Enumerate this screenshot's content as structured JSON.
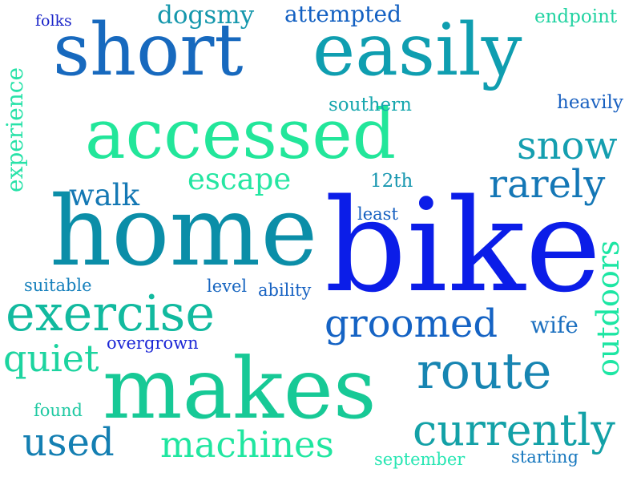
{
  "words": [
    {
      "text": "bike",
      "color": "#0b1de8"
    },
    {
      "text": "home",
      "color": "#0b8ea8"
    },
    {
      "text": "makes",
      "color": "#17c996"
    },
    {
      "text": "short",
      "color": "#1769be"
    },
    {
      "text": "easily",
      "color": "#0f9eb0"
    },
    {
      "text": "accessed",
      "color": "#22e69a"
    },
    {
      "text": "exercise",
      "color": "#12ba9f"
    },
    {
      "text": "route",
      "color": "#1785b2"
    },
    {
      "text": "currently",
      "color": "#13a1a7"
    },
    {
      "text": "groomed",
      "color": "#1563c4"
    },
    {
      "text": "machines",
      "color": "#20e6a0"
    },
    {
      "text": "snow",
      "color": "#159fb0"
    },
    {
      "text": "rarely",
      "color": "#1477b6"
    },
    {
      "text": "used",
      "color": "#147fb2"
    },
    {
      "text": "quiet",
      "color": "#1cd49f"
    },
    {
      "text": "escape",
      "color": "#25e6a2"
    },
    {
      "text": "walk",
      "color": "#1478b4"
    },
    {
      "text": "outdoors",
      "color": "#1ce6a3"
    },
    {
      "text": "experience",
      "color": "#27e2a8"
    },
    {
      "text": "wife",
      "color": "#1b6fbf"
    },
    {
      "text": "dogsmy",
      "color": "#1497ac"
    },
    {
      "text": "attempted",
      "color": "#1360c2"
    },
    {
      "text": "endpoint",
      "color": "#22d3a2"
    },
    {
      "text": "heavily",
      "color": "#1860c0"
    },
    {
      "text": "southern",
      "color": "#17a7ae"
    },
    {
      "text": "12th",
      "color": "#1897b0"
    },
    {
      "text": "least",
      "color": "#1660c0"
    },
    {
      "text": "suitable",
      "color": "#1680bc"
    },
    {
      "text": "level",
      "color": "#1866c0"
    },
    {
      "text": "ability",
      "color": "#1762c2"
    },
    {
      "text": "overgrown",
      "color": "#1d28d6"
    },
    {
      "text": "found",
      "color": "#1fc9a2"
    },
    {
      "text": "september",
      "color": "#28e6b3"
    },
    {
      "text": "starting",
      "color": "#1677be"
    },
    {
      "text": "folks",
      "color": "#1822c8"
    }
  ]
}
